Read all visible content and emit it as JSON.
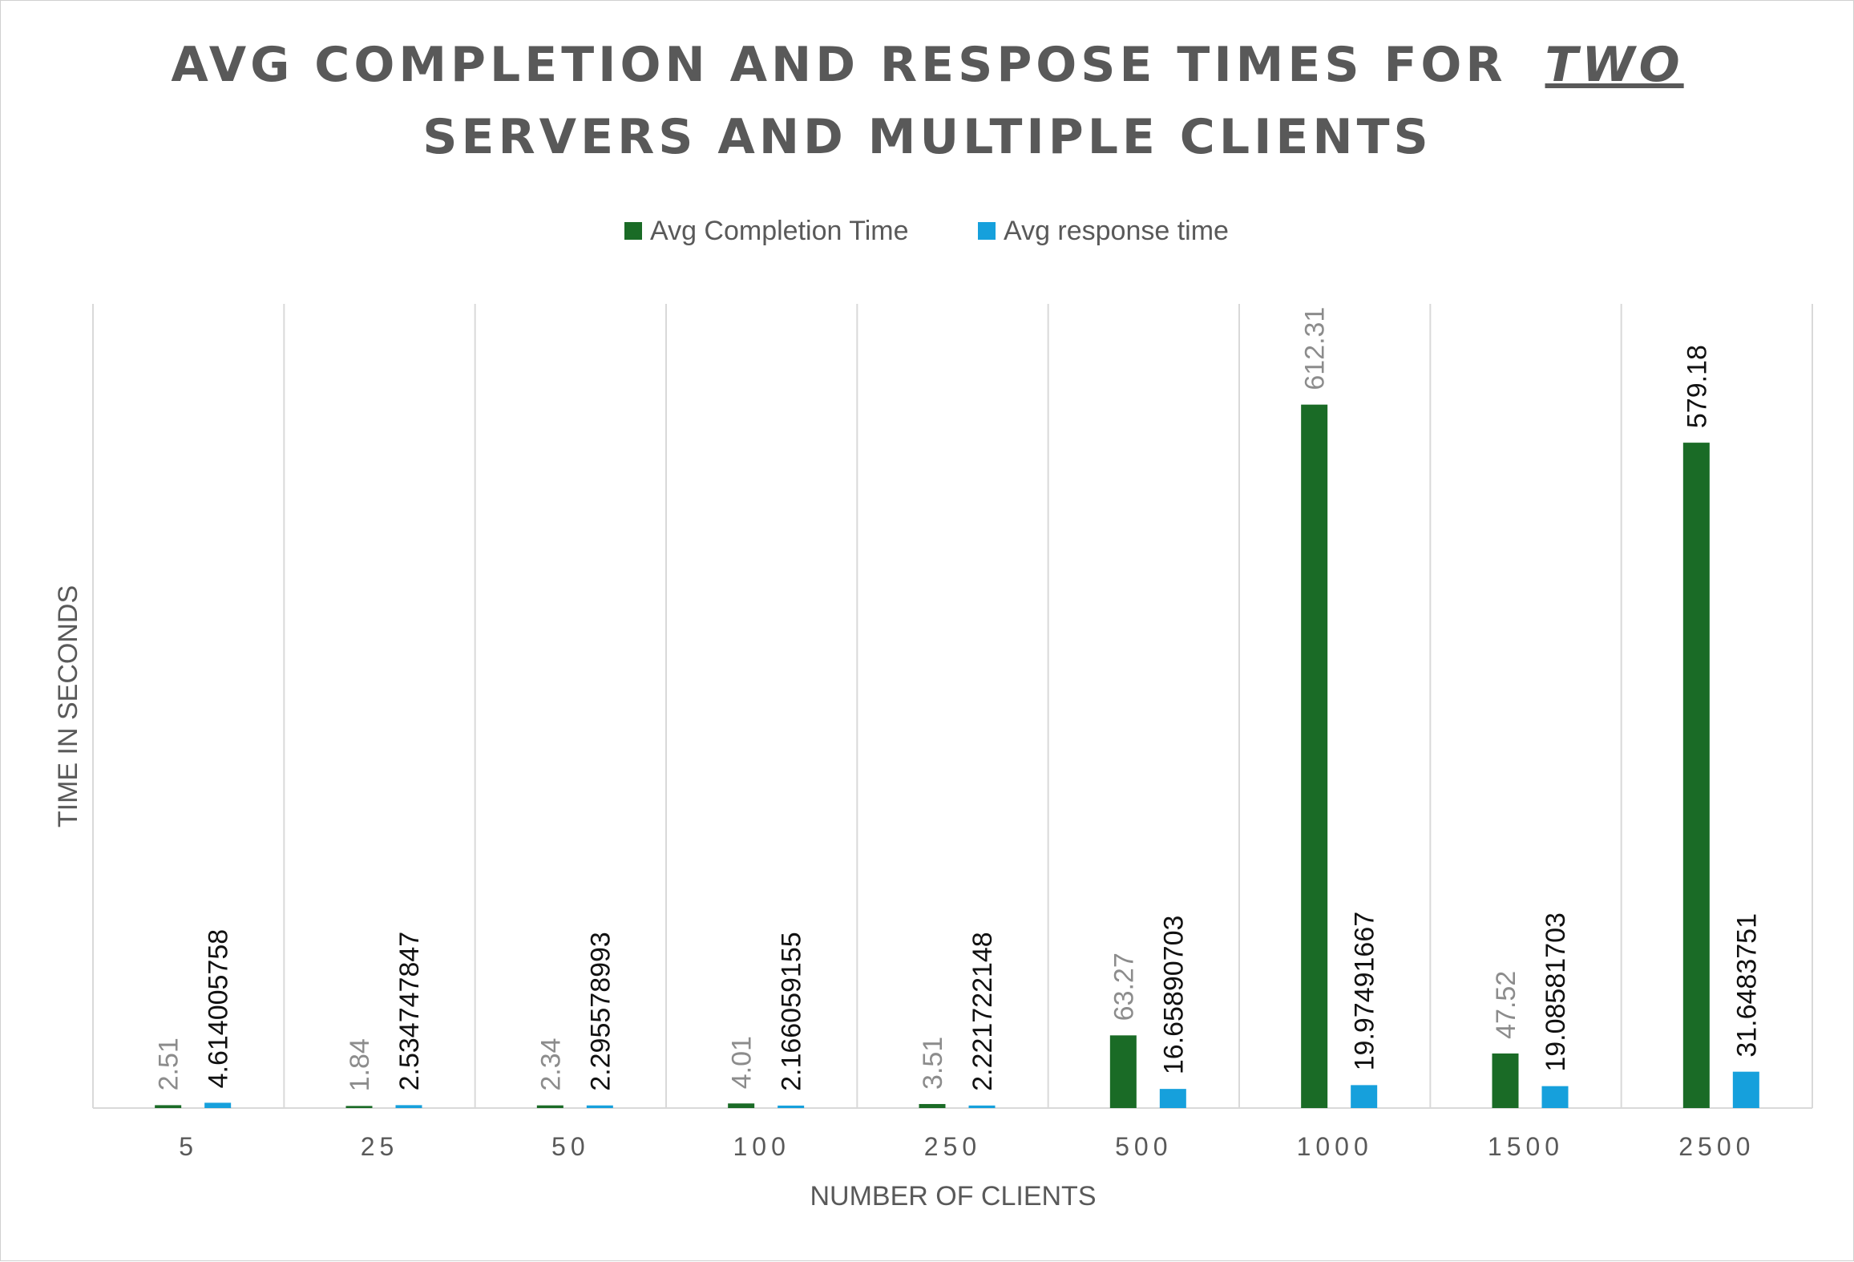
{
  "chart_data": {
    "type": "bar",
    "title": {
      "line1_prefix": "AVG COMPLETION AND RESPOSE TIMES FOR",
      "line1_emphasis": "TWO",
      "line2": "SERVERS AND MULTIPLE CLIENTS"
    },
    "xlabel": "NUMBER OF CLIENTS",
    "ylabel": "TIME IN SECONDS",
    "categories": [
      "5",
      "25",
      "50",
      "100",
      "250",
      "500",
      "1000",
      "1500",
      "2500"
    ],
    "series": [
      {
        "name": "Avg Completion Time",
        "color": "#1a6b26",
        "values": [
          2.51,
          1.84,
          2.34,
          4.01,
          3.51,
          63.27,
          612.31,
          47.52,
          579.18
        ],
        "labels": [
          "2.51",
          "1.84",
          "2.34",
          "4.01",
          "3.51",
          "63.27",
          "612.31",
          "47.52",
          "579.18"
        ],
        "label_colors": [
          "#8c8c8c",
          "#8c8c8c",
          "#8c8c8c",
          "#8c8c8c",
          "#8c8c8c",
          "#8c8c8c",
          "#8c8c8c",
          "#8c8c8c",
          "#111111"
        ]
      },
      {
        "name": "Avg response time",
        "color": "#16a0dc",
        "values": [
          4.614005758,
          2.534747847,
          2.295578993,
          2.166059155,
          2.221722148,
          16.65890703,
          19.97491667,
          19.08581703,
          31.6483751
        ],
        "labels": [
          "4.614005758",
          "2.534747847",
          "2.295578993",
          "2.166059155",
          "2.221722148",
          "16.65890703",
          "19.97491667",
          "19.08581703",
          "31.6483751"
        ],
        "label_colors": [
          "#111111",
          "#111111",
          "#111111",
          "#111111",
          "#111111",
          "#111111",
          "#111111",
          "#111111",
          "#111111"
        ]
      }
    ],
    "ylim": [
      0,
      700
    ],
    "grid": "vertical",
    "legend": "top-center",
    "colors": {
      "title": "#595959",
      "axis_text": "#595959",
      "gridline": "#d9d9d9"
    }
  }
}
